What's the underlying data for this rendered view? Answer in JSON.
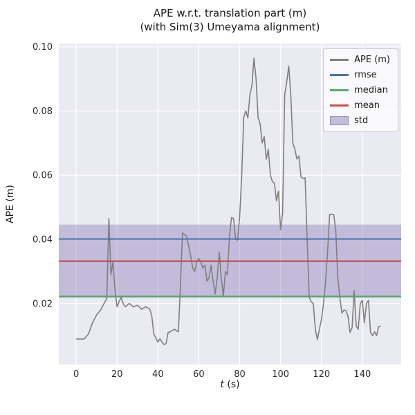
{
  "figure": {
    "title_line1": "APE w.r.t. translation part (m)",
    "title_line2": "(with Sim(3) Umeyama alignment)",
    "ylabel": "APE (m)",
    "xlabel_var": "t",
    "xlabel_unit": " (s)"
  },
  "chart_data": {
    "type": "line",
    "title": "APE w.r.t. translation part (m) (with Sim(3) Umeyama alignment)",
    "xlabel": "t (s)",
    "ylabel": "APE (m)",
    "xlim": [
      -8.5,
      159
    ],
    "ylim": [
      0.001,
      0.101
    ],
    "xticks": [
      0,
      20,
      40,
      60,
      80,
      100,
      120,
      140
    ],
    "xtick_labels": [
      "0",
      "20",
      "40",
      "60",
      "80",
      "100",
      "120",
      "140"
    ],
    "yticks": [
      0.02,
      0.04,
      0.06,
      0.08,
      0.1
    ],
    "ytick_labels": [
      "0.02",
      "0.04",
      "0.06",
      "0.08",
      "0.10"
    ],
    "grid": true,
    "legend_position": "upper right",
    "colors": {
      "axes_bg": "#EAEAF2",
      "grid": "#FFFFFF",
      "tick_text": "#2b2b2b"
    },
    "series": {
      "name": "APE (m)",
      "color": "#7f7f7f",
      "points": [
        [
          0,
          0.009
        ],
        [
          2,
          0.0089
        ],
        [
          4,
          0.009
        ],
        [
          6,
          0.0105
        ],
        [
          8,
          0.014
        ],
        [
          10,
          0.0165
        ],
        [
          12,
          0.018
        ],
        [
          14,
          0.0205
        ],
        [
          15,
          0.0215
        ],
        [
          16,
          0.0465
        ],
        [
          17,
          0.029
        ],
        [
          18,
          0.033
        ],
        [
          19,
          0.024
        ],
        [
          20,
          0.019
        ],
        [
          21,
          0.0205
        ],
        [
          22,
          0.022
        ],
        [
          23,
          0.02
        ],
        [
          24,
          0.019
        ],
        [
          26,
          0.02
        ],
        [
          28,
          0.019
        ],
        [
          30,
          0.0195
        ],
        [
          32,
          0.0182
        ],
        [
          34,
          0.019
        ],
        [
          36,
          0.0183
        ],
        [
          37,
          0.016
        ],
        [
          38,
          0.0105
        ],
        [
          39,
          0.0092
        ],
        [
          40,
          0.008
        ],
        [
          41,
          0.009
        ],
        [
          42,
          0.008
        ],
        [
          43,
          0.0072
        ],
        [
          44,
          0.0075
        ],
        [
          45,
          0.011
        ],
        [
          46,
          0.0112
        ],
        [
          48,
          0.012
        ],
        [
          50,
          0.0112
        ],
        [
          51,
          0.025
        ],
        [
          52,
          0.042
        ],
        [
          53,
          0.0415
        ],
        [
          54,
          0.041
        ],
        [
          55,
          0.038
        ],
        [
          56,
          0.035
        ],
        [
          57,
          0.031
        ],
        [
          58,
          0.03
        ],
        [
          59,
          0.033
        ],
        [
          60,
          0.034
        ],
        [
          61,
          0.033
        ],
        [
          62,
          0.031
        ],
        [
          63,
          0.032
        ],
        [
          64,
          0.027
        ],
        [
          65,
          0.028
        ],
        [
          66,
          0.032
        ],
        [
          67,
          0.027
        ],
        [
          68,
          0.023
        ],
        [
          69,
          0.028
        ],
        [
          70,
          0.036
        ],
        [
          71,
          0.028
        ],
        [
          72,
          0.0222
        ],
        [
          73,
          0.03
        ],
        [
          74,
          0.029
        ],
        [
          75,
          0.041
        ],
        [
          76,
          0.0468
        ],
        [
          77,
          0.0465
        ],
        [
          78,
          0.04
        ],
        [
          79,
          0.0398
        ],
        [
          80,
          0.047
        ],
        [
          81,
          0.06
        ],
        [
          82,
          0.078
        ],
        [
          83,
          0.08
        ],
        [
          84,
          0.0778
        ],
        [
          85,
          0.085
        ],
        [
          86,
          0.088
        ],
        [
          87,
          0.0965
        ],
        [
          88,
          0.09
        ],
        [
          89,
          0.078
        ],
        [
          90,
          0.076
        ],
        [
          91,
          0.07
        ],
        [
          92,
          0.072
        ],
        [
          93,
          0.065
        ],
        [
          94,
          0.068
        ],
        [
          95,
          0.06
        ],
        [
          96,
          0.058
        ],
        [
          97,
          0.0575
        ],
        [
          98,
          0.052
        ],
        [
          99,
          0.055
        ],
        [
          100,
          0.043
        ],
        [
          101,
          0.048
        ],
        [
          102,
          0.085
        ],
        [
          103,
          0.089
        ],
        [
          104,
          0.094
        ],
        [
          105,
          0.085
        ],
        [
          106,
          0.07
        ],
        [
          107,
          0.068
        ],
        [
          108,
          0.065
        ],
        [
          109,
          0.066
        ],
        [
          110,
          0.0595
        ],
        [
          111,
          0.059
        ],
        [
          112,
          0.0592
        ],
        [
          113,
          0.04
        ],
        [
          114,
          0.022
        ],
        [
          115,
          0.0205
        ],
        [
          116,
          0.02
        ],
        [
          117,
          0.012
        ],
        [
          118,
          0.0088
        ],
        [
          119,
          0.012
        ],
        [
          120,
          0.015
        ],
        [
          121,
          0.02
        ],
        [
          122,
          0.027
        ],
        [
          123,
          0.036
        ],
        [
          124,
          0.0478
        ],
        [
          125,
          0.0478
        ],
        [
          126,
          0.0477
        ],
        [
          127,
          0.043
        ],
        [
          128,
          0.028
        ],
        [
          129,
          0.022
        ],
        [
          130,
          0.017
        ],
        [
          131,
          0.018
        ],
        [
          132,
          0.0178
        ],
        [
          133,
          0.016
        ],
        [
          134,
          0.011
        ],
        [
          135,
          0.0125
        ],
        [
          136,
          0.024
        ],
        [
          137,
          0.013
        ],
        [
          138,
          0.012
        ],
        [
          139,
          0.02
        ],
        [
          140,
          0.021
        ],
        [
          141,
          0.014
        ],
        [
          142,
          0.02
        ],
        [
          143,
          0.021
        ],
        [
          144,
          0.011
        ],
        [
          145,
          0.01
        ],
        [
          146,
          0.0112
        ],
        [
          147,
          0.01
        ],
        [
          148,
          0.0128
        ],
        [
          149,
          0.013
        ]
      ]
    },
    "stats": {
      "rmse": {
        "value": 0.0401,
        "color": "#4C72B0"
      },
      "median": {
        "value": 0.0222,
        "color": "#55A868"
      },
      "mean": {
        "value": 0.0332,
        "color": "#C44E52"
      },
      "std_band": {
        "lower": 0.0218,
        "upper": 0.0446,
        "color": "#8172B2",
        "opacity": 0.38
      }
    },
    "legend": [
      {
        "label": "APE (m)",
        "type": "line",
        "color": "#7f7f7f"
      },
      {
        "label": "rmse",
        "type": "line",
        "color": "#4C72B0"
      },
      {
        "label": "median",
        "type": "line",
        "color": "#55A868"
      },
      {
        "label": "mean",
        "type": "line",
        "color": "#C44E52"
      },
      {
        "label": "std",
        "type": "patch",
        "color": "#8172B2"
      }
    ]
  }
}
